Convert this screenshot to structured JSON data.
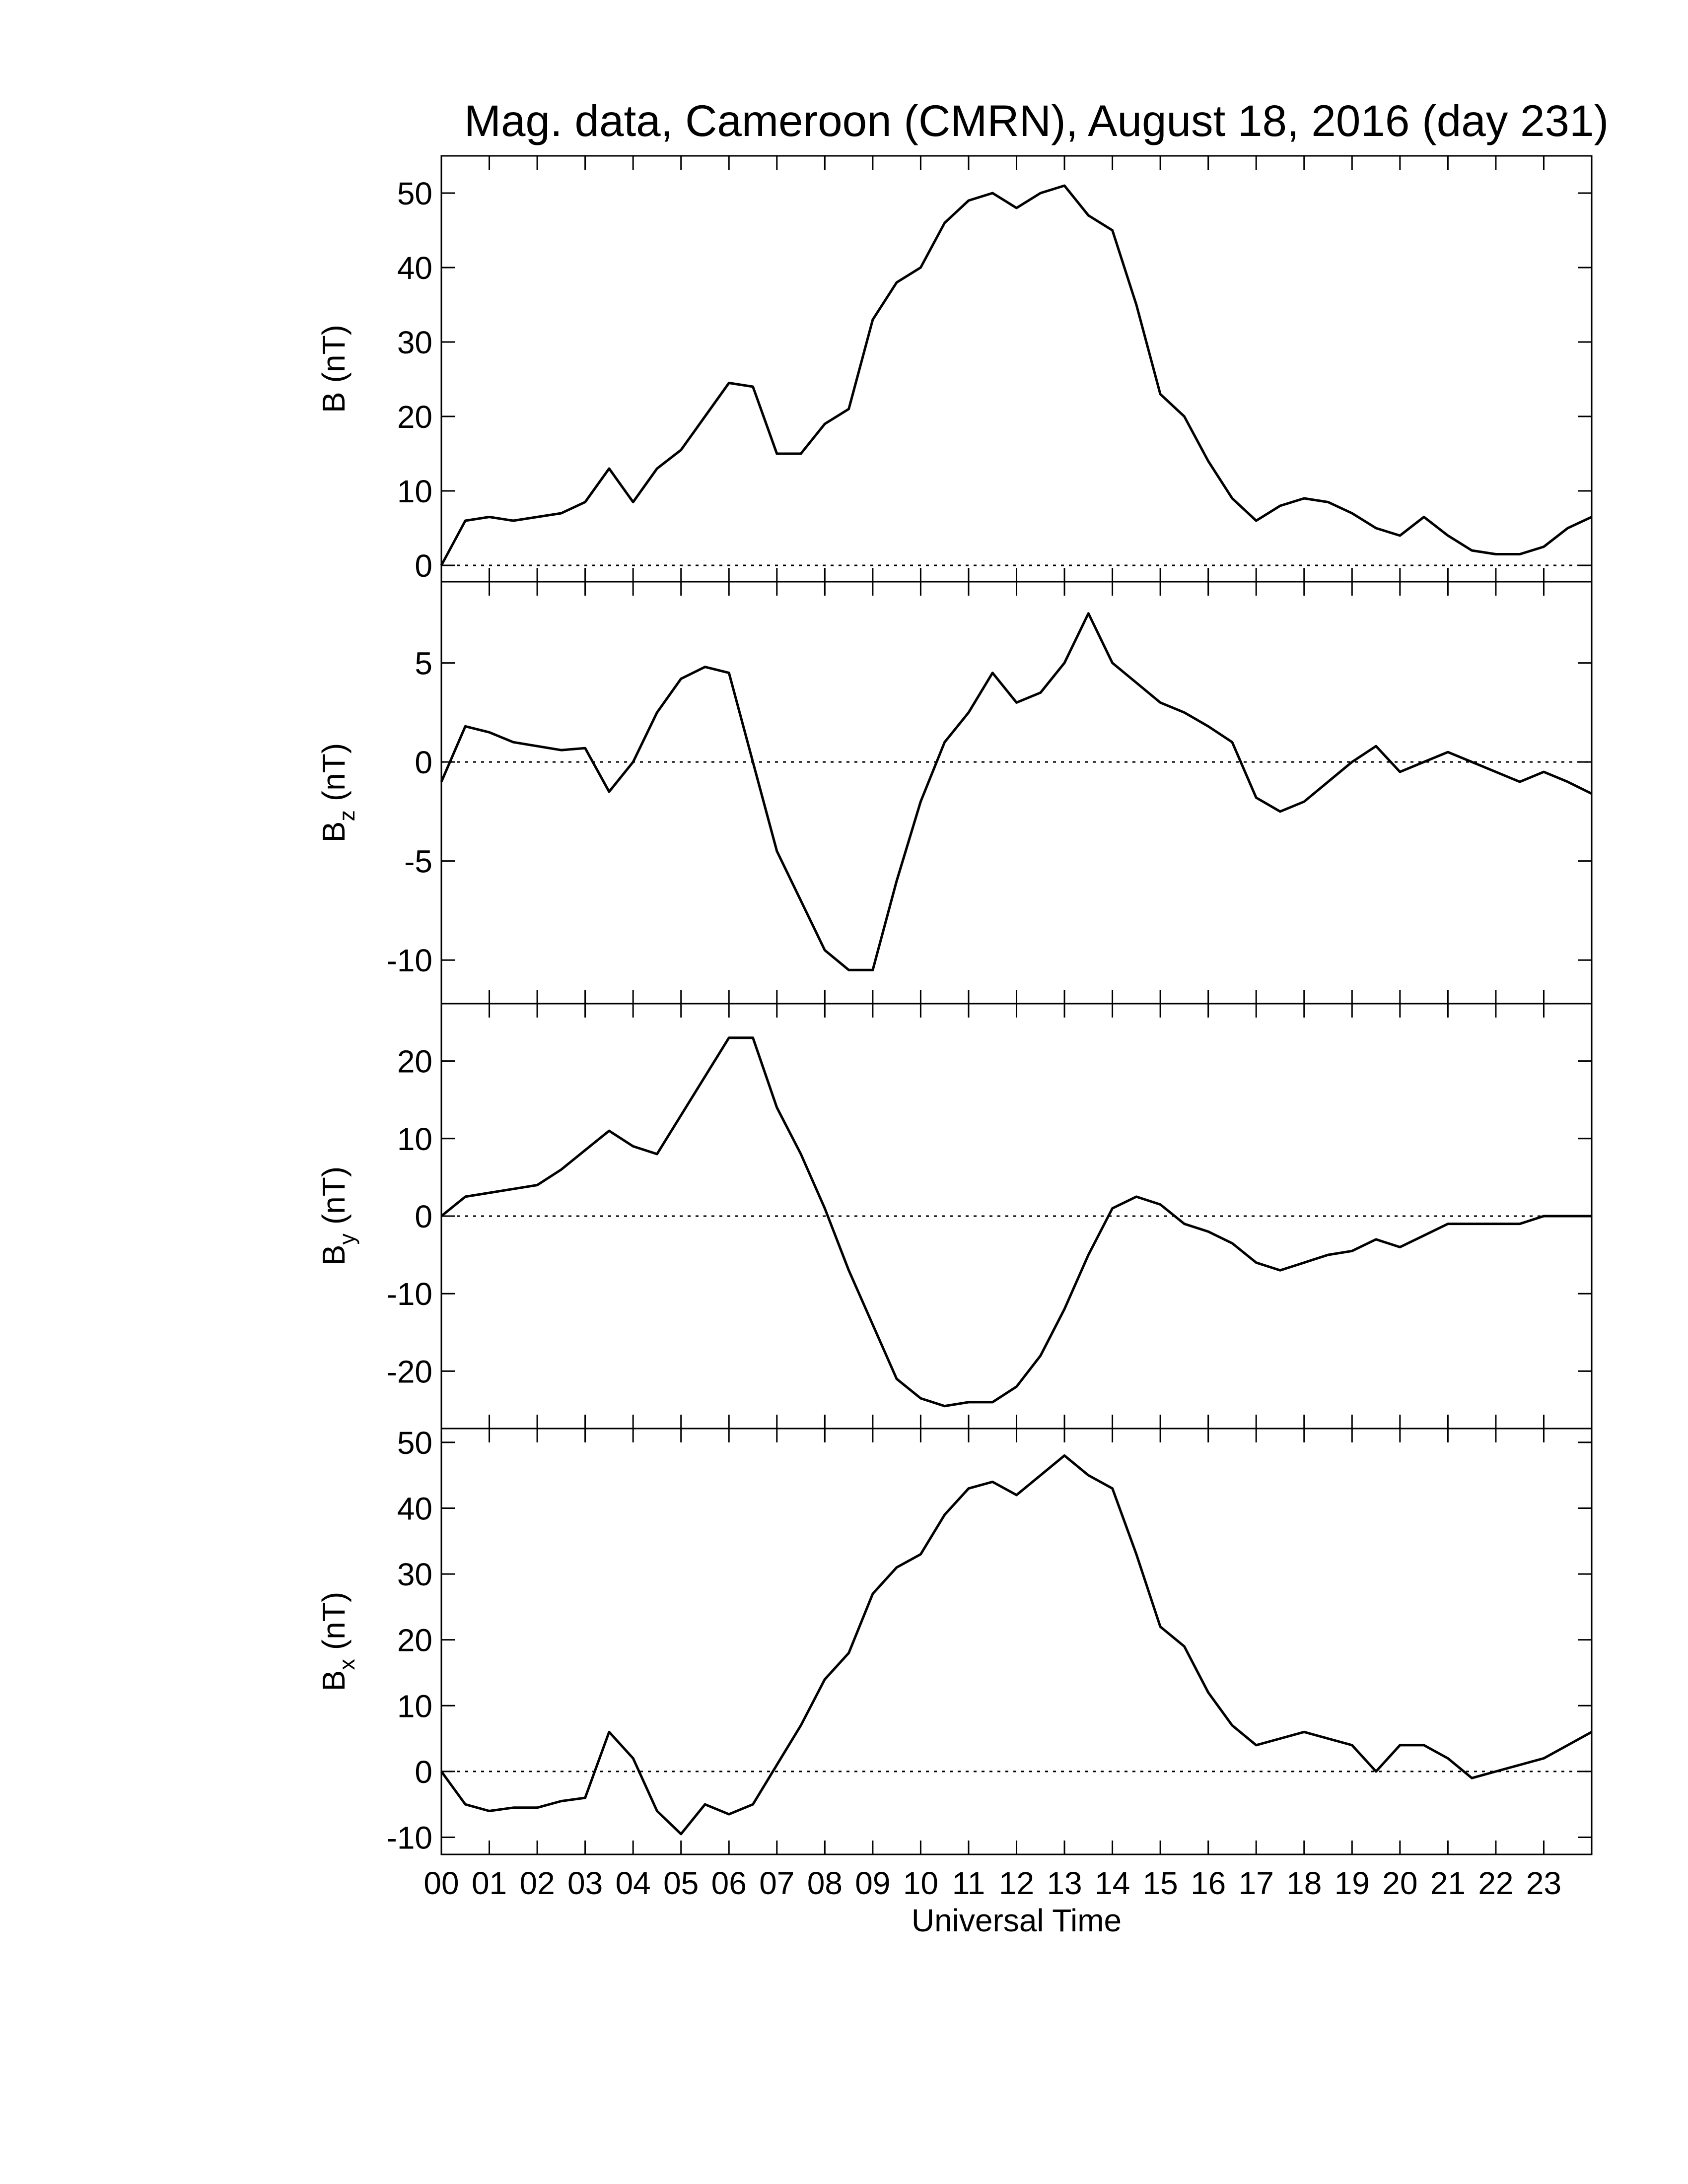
{
  "chart_data": [
    {
      "type": "line",
      "title": "Mag. data, Cameroon (CMRN), August 18, 2016 (day 231)",
      "y_label": {
        "symbol": "B",
        "unit": "(nT)"
      },
      "x": [
        0,
        0.5,
        1,
        1.5,
        2,
        2.5,
        3,
        3.5,
        4,
        4.5,
        5,
        5.5,
        6,
        6.5,
        7,
        7.5,
        8,
        8.5,
        9,
        9.5,
        10,
        10.5,
        11,
        11.5,
        12,
        12.5,
        13,
        13.5,
        14,
        14.5,
        15,
        15.5,
        16,
        16.5,
        17,
        17.5,
        18,
        18.5,
        19,
        19.5,
        20,
        20.5,
        21,
        21.5,
        22,
        22.5,
        23,
        23.5,
        24
      ],
      "series": [
        {
          "color": "#000000",
          "values": [
            0,
            6,
            6.5,
            6,
            6.5,
            7,
            8.5,
            13,
            8.5,
            13,
            15.5,
            20,
            24.5,
            24,
            15,
            15,
            19,
            21,
            33,
            38,
            40,
            46,
            49,
            50,
            48,
            50,
            51,
            47,
            45,
            35,
            23,
            20,
            14,
            9,
            6,
            8,
            9,
            8.5,
            7,
            5,
            4,
            6.5,
            4,
            2,
            1.5,
            1.5,
            2.5,
            5,
            6.5
          ]
        }
      ],
      "xlim": [
        0,
        24
      ],
      "xticks": [
        0,
        1,
        2,
        3,
        4,
        5,
        6,
        7,
        8,
        9,
        10,
        11,
        12,
        13,
        14,
        15,
        16,
        17,
        18,
        19,
        20,
        21,
        22,
        23
      ],
      "ylim": [
        -2.2,
        55
      ],
      "yticks": [
        0,
        10,
        20,
        30,
        40,
        50
      ],
      "zero_line": true,
      "grid": false
    },
    {
      "type": "line",
      "y_label": {
        "symbol": "B",
        "subscript": "z",
        "unit": "(nT)"
      },
      "x": [
        0,
        0.5,
        1,
        1.5,
        2,
        2.5,
        3,
        3.5,
        4,
        4.5,
        5,
        5.5,
        6,
        6.5,
        7,
        7.5,
        8,
        8.5,
        9,
        9.5,
        10,
        10.5,
        11,
        11.5,
        12,
        12.5,
        13,
        13.5,
        14,
        14.5,
        15,
        15.5,
        16,
        16.5,
        17,
        17.5,
        18,
        18.5,
        19,
        19.5,
        20,
        20.5,
        21,
        21.5,
        22,
        22.5,
        23,
        23.5,
        24
      ],
      "series": [
        {
          "color": "#000000",
          "values": [
            -1,
            1.8,
            1.5,
            1,
            0.8,
            0.6,
            0.7,
            -1.5,
            0,
            2.5,
            4.2,
            4.8,
            4.5,
            0,
            -4.5,
            -7,
            -9.5,
            -10.5,
            -10.5,
            -6,
            -2,
            1,
            2.5,
            4.5,
            3,
            3.5,
            5,
            7.5,
            5,
            4,
            3,
            2.5,
            1.8,
            1,
            -1.8,
            -2.5,
            -2,
            -1,
            0,
            0.8,
            -0.5,
            0,
            0.5,
            0,
            -0.5,
            -1,
            -0.5,
            -1,
            -1.6
          ]
        }
      ],
      "xlim": [
        0,
        24
      ],
      "xticks": [
        0,
        1,
        2,
        3,
        4,
        5,
        6,
        7,
        8,
        9,
        10,
        11,
        12,
        13,
        14,
        15,
        16,
        17,
        18,
        19,
        20,
        21,
        22,
        23
      ],
      "ylim": [
        -12.2,
        9.1
      ],
      "yticks": [
        -10,
        -5,
        0,
        5
      ],
      "zero_line": true,
      "grid": false
    },
    {
      "type": "line",
      "y_label": {
        "symbol": "B",
        "subscript": "y",
        "unit": "(nT)"
      },
      "x": [
        0,
        0.5,
        1,
        1.5,
        2,
        2.5,
        3,
        3.5,
        4,
        4.5,
        5,
        5.5,
        6,
        6.5,
        7,
        7.5,
        8,
        8.5,
        9,
        9.5,
        10,
        10.5,
        11,
        11.5,
        12,
        12.5,
        13,
        13.5,
        14,
        14.5,
        15,
        15.5,
        16,
        16.5,
        17,
        17.5,
        18,
        18.5,
        19,
        19.5,
        20,
        20.5,
        21,
        21.5,
        22,
        22.5,
        23,
        23.5,
        24
      ],
      "series": [
        {
          "color": "#000000",
          "values": [
            0,
            2.5,
            3,
            3.5,
            4,
            6,
            8.5,
            11,
            9,
            8,
            13,
            18,
            23,
            23,
            14,
            8,
            1,
            -7,
            -14,
            -21,
            -23.5,
            -24.5,
            -24,
            -24,
            -22,
            -18,
            -12,
            -5,
            1,
            2.5,
            1.5,
            -1,
            -2,
            -3.5,
            -6,
            -7,
            -6,
            -5,
            -4.5,
            -3,
            -4,
            -2.5,
            -1,
            -1,
            -1,
            -1,
            0,
            0,
            0
          ]
        }
      ],
      "xlim": [
        0,
        24
      ],
      "xticks": [
        0,
        1,
        2,
        3,
        4,
        5,
        6,
        7,
        8,
        9,
        10,
        11,
        12,
        13,
        14,
        15,
        16,
        17,
        18,
        19,
        20,
        21,
        22,
        23
      ],
      "ylim": [
        -27.4,
        27.4
      ],
      "yticks": [
        -20,
        -10,
        0,
        10,
        20
      ],
      "zero_line": true,
      "grid": false
    },
    {
      "type": "line",
      "x_label": "Universal Time",
      "y_label": {
        "symbol": "B",
        "subscript": "x",
        "unit": "(nT)"
      },
      "x": [
        0,
        0.5,
        1,
        1.5,
        2,
        2.5,
        3,
        3.5,
        4,
        4.5,
        5,
        5.5,
        6,
        6.5,
        7,
        7.5,
        8,
        8.5,
        9,
        9.5,
        10,
        10.5,
        11,
        11.5,
        12,
        12.5,
        13,
        13.5,
        14,
        14.5,
        15,
        15.5,
        16,
        16.5,
        17,
        17.5,
        18,
        18.5,
        19,
        19.5,
        20,
        20.5,
        21,
        21.5,
        22,
        22.5,
        23,
        23.5,
        24
      ],
      "series": [
        {
          "color": "#000000",
          "values": [
            0,
            -5,
            -6,
            -5.5,
            -5.5,
            -4.5,
            -4,
            6,
            2,
            -6,
            -9.5,
            -5,
            -6.5,
            -5,
            1,
            7,
            14,
            18,
            27,
            31,
            33,
            39,
            43,
            44,
            42,
            45,
            48,
            45,
            43,
            33,
            22,
            19,
            12,
            7,
            4,
            5,
            6,
            5,
            4,
            0,
            4,
            4,
            2,
            -1,
            0,
            1,
            2,
            4,
            6
          ]
        }
      ],
      "xlim": [
        0,
        24
      ],
      "xticks": [
        {
          "value": 0,
          "label": "00"
        },
        {
          "value": 1,
          "label": "01"
        },
        {
          "value": 2,
          "label": "02"
        },
        {
          "value": 3,
          "label": "03"
        },
        {
          "value": 4,
          "label": "04"
        },
        {
          "value": 5,
          "label": "05"
        },
        {
          "value": 6,
          "label": "06"
        },
        {
          "value": 7,
          "label": "07"
        },
        {
          "value": 8,
          "label": "08"
        },
        {
          "value": 9,
          "label": "09"
        },
        10,
        11,
        12,
        13,
        14,
        15,
        16,
        17,
        18,
        19,
        20,
        21,
        22,
        23
      ],
      "ylim": [
        -12.6,
        52.1
      ],
      "yticks": [
        -10,
        0,
        10,
        20,
        30,
        40,
        50
      ],
      "zero_line": true,
      "grid": false
    }
  ]
}
